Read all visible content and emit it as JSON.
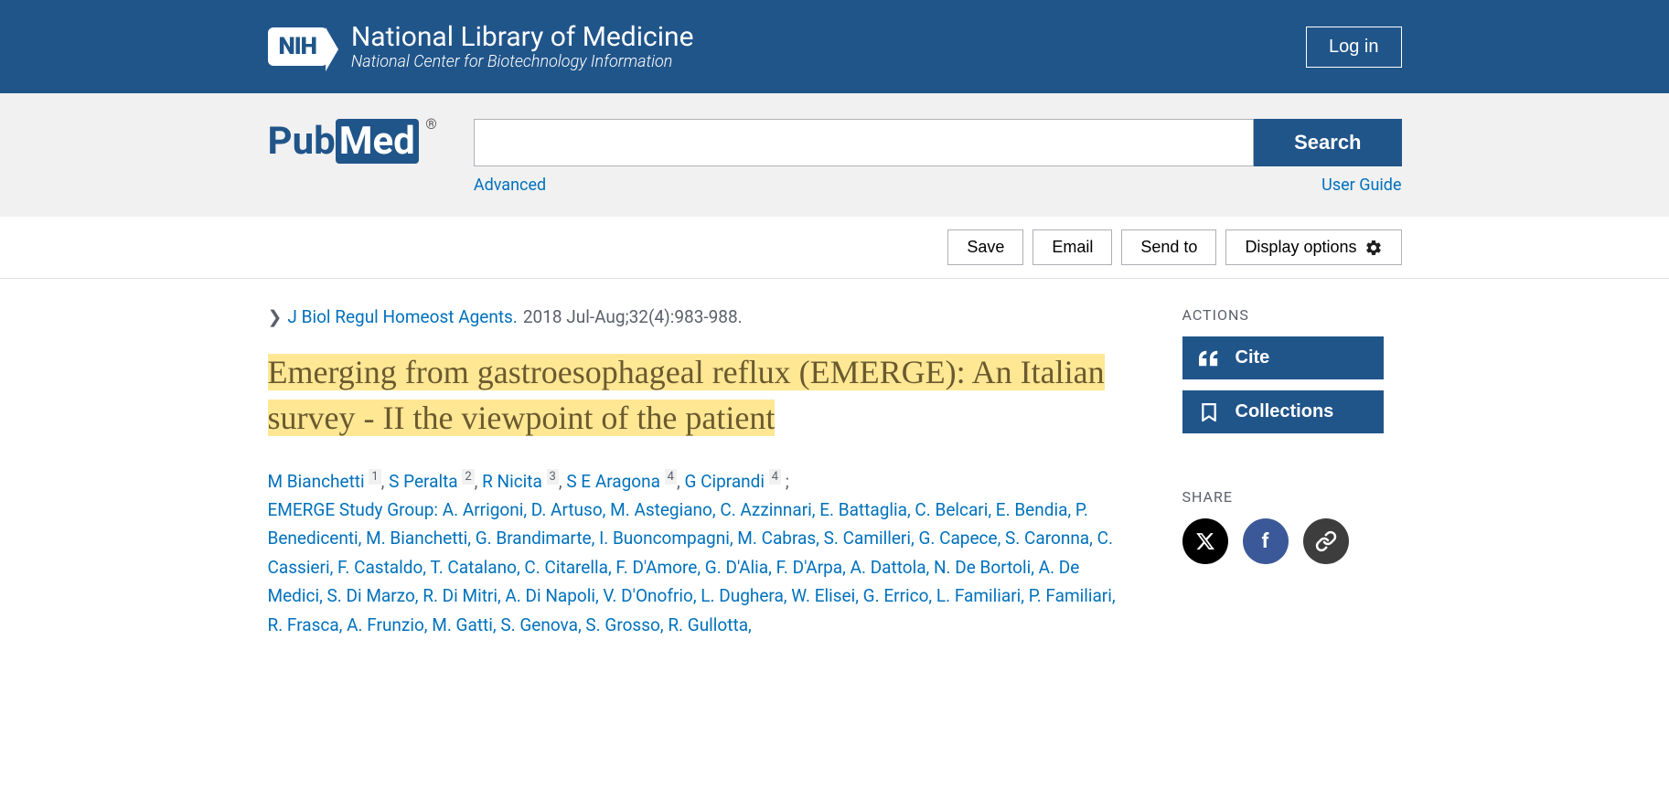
{
  "header": {
    "nih_logo_text": "NIH",
    "title": "National Library of Medicine",
    "subtitle": "National Center for Biotechnology Information",
    "login_label": "Log in"
  },
  "search": {
    "pubmed_text_pub": "Pub",
    "pubmed_text_med": "Med",
    "pubmed_reg": "®",
    "search_value": "",
    "search_button": "Search",
    "advanced_link": "Advanced",
    "user_guide_link": "User Guide"
  },
  "action_bar": {
    "save": "Save",
    "email": "Email",
    "send_to": "Send to",
    "display_options": "Display options"
  },
  "article": {
    "journal_link": "J Biol Regul Homeost Agents.",
    "citation_meta": "2018 Jul-Aug;32(4):983-988.",
    "title": "Emerging from gastroesophageal reflux (EMERGE): An Italian survey - II the viewpoint of the patient",
    "authors_main": [
      {
        "name": "M Bianchetti",
        "aff": "1"
      },
      {
        "name": "S Peralta",
        "aff": "2"
      },
      {
        "name": "R Nicita",
        "aff": "3"
      },
      {
        "name": "S E Aragona",
        "aff": "4"
      },
      {
        "name": "G Ciprandi",
        "aff": "4"
      }
    ],
    "group_prefix": "EMERGE Study Group: ",
    "group_authors": "A. Arrigoni, D. Artuso, M. Astegiano, C. Azzinnari, E. Battaglia, C. Belcari, E. Bendia, P. Benedicenti, M. Bianchetti, G. Brandimarte, I. Buoncompagni, M. Cabras, S. Camilleri, G. Capece, S. Caronna, C. Cassieri, F. Castaldo, T. Catalano, C. Citarella, F. D'Amore, G. D'Alia, F. D'Arpa, A. Dattola, N. De Bortoli, A. De Medici, S. Di Marzo, R. Di Mitri, A. Di Napoli, V. D'Onofrio, L. Dughera, W. Elisei, G. Errico, L. Familiari, P. Familiari, R. Frasca, A. Frunzio, M. Gatti, S. Genova, S. Grosso, R. Gullotta,"
  },
  "sidebar": {
    "actions_heading": "ACTIONS",
    "cite_label": "Cite",
    "collections_label": "Collections",
    "share_heading": "SHARE"
  },
  "colors": {
    "primary": "#20558a",
    "link": "#0071bc",
    "highlight_bg": "#ffe794",
    "highlight_text": "#6a5a2f",
    "gray_bg": "#f1f1f1",
    "text_muted": "#5b616b"
  }
}
